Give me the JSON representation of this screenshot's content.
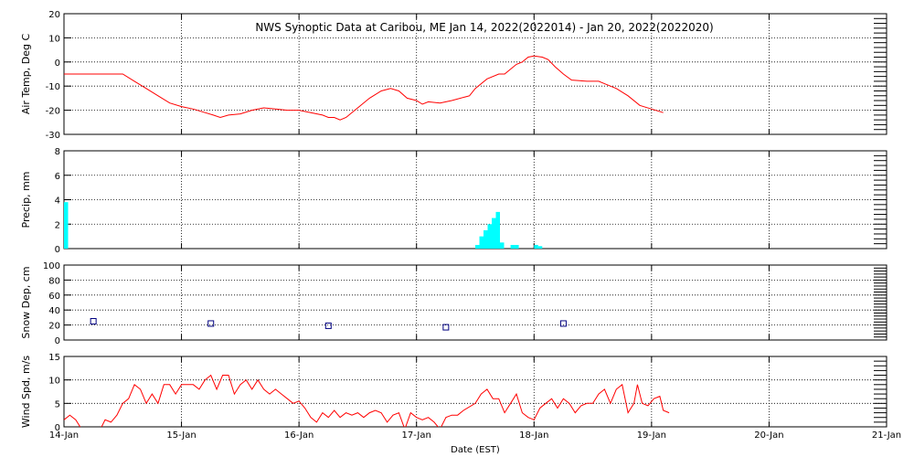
{
  "chart_data": {
    "type": "line",
    "title": "NWS Synoptic Data at Caribou, ME   Jan 14, 2022(2022014) - Jan 20, 2022(2022020)",
    "xlabel": "Date (EST)",
    "x_range_days": [
      0,
      7
    ],
    "x_tick_labels": [
      "14-Jan",
      "15-Jan",
      "16-Jan",
      "17-Jan",
      "18-Jan",
      "19-Jan",
      "20-Jan",
      "21-Jan"
    ],
    "grid": true,
    "colors": {
      "line": "#ff0000",
      "precip": "#00ffff",
      "snow": "#000080",
      "frame": "#000000"
    },
    "panels": [
      {
        "key": "temp",
        "ylabel": "Air Temp, Deg C",
        "ylim": [
          -30,
          20
        ],
        "yticks": [
          -30,
          -20,
          -10,
          0,
          10,
          20
        ],
        "series": [
          {
            "type": "line",
            "points": [
              [
                0,
                -5
              ],
              [
                0.4,
                -5
              ],
              [
                0.5,
                -5
              ],
              [
                0.6,
                -8
              ],
              [
                0.7,
                -11
              ],
              [
                0.8,
                -14
              ],
              [
                0.9,
                -17
              ],
              [
                1.0,
                -18.5
              ],
              [
                1.1,
                -19.5
              ],
              [
                1.2,
                -21
              ],
              [
                1.27,
                -22
              ],
              [
                1.33,
                -23
              ],
              [
                1.4,
                -22
              ],
              [
                1.5,
                -21.5
              ],
              [
                1.6,
                -20
              ],
              [
                1.7,
                -19
              ],
              [
                1.8,
                -19.5
              ],
              [
                1.9,
                -20
              ],
              [
                2.0,
                -20
              ],
              [
                2.1,
                -21
              ],
              [
                2.2,
                -22
              ],
              [
                2.25,
                -23
              ],
              [
                2.3,
                -23
              ],
              [
                2.35,
                -24
              ],
              [
                2.4,
                -23
              ],
              [
                2.5,
                -19
              ],
              [
                2.6,
                -15
              ],
              [
                2.7,
                -12
              ],
              [
                2.78,
                -11
              ],
              [
                2.85,
                -12
              ],
              [
                2.92,
                -15
              ],
              [
                3.0,
                -16
              ],
              [
                3.05,
                -17.5
              ],
              [
                3.1,
                -16.5
              ],
              [
                3.2,
                -17
              ],
              [
                3.3,
                -16
              ],
              [
                3.45,
                -14
              ],
              [
                3.5,
                -11
              ],
              [
                3.6,
                -7
              ],
              [
                3.7,
                -5
              ],
              [
                3.75,
                -5
              ],
              [
                3.85,
                -1
              ],
              [
                3.9,
                0
              ],
              [
                3.95,
                2
              ],
              [
                4.0,
                2.5
              ],
              [
                4.07,
                2
              ],
              [
                4.12,
                1
              ],
              [
                4.18,
                -2
              ],
              [
                4.25,
                -5
              ],
              [
                4.32,
                -7.5
              ],
              [
                4.45,
                -8
              ],
              [
                4.55,
                -8
              ],
              [
                4.6,
                -9
              ],
              [
                4.7,
                -11
              ],
              [
                4.8,
                -14
              ],
              [
                4.9,
                -18
              ],
              [
                5.0,
                -19.5
              ],
              [
                5.1,
                -21
              ]
            ]
          }
        ]
      },
      {
        "key": "precip",
        "ylabel": "Precip, mm",
        "ylim": [
          0,
          8
        ],
        "yticks": [
          0,
          2,
          4,
          6,
          8
        ],
        "series": [
          {
            "type": "bar",
            "bin_width": 0.035,
            "bars": [
              [
                0,
                3.8
              ],
              [
                3.5,
                0.3
              ],
              [
                3.535,
                1.0
              ],
              [
                3.57,
                1.5
              ],
              [
                3.605,
                2.0
              ],
              [
                3.64,
                2.5
              ],
              [
                3.675,
                3.0
              ],
              [
                3.71,
                0.5
              ],
              [
                3.8,
                0.3
              ],
              [
                3.835,
                0.3
              ],
              [
                4.0,
                0.3
              ],
              [
                4.035,
                0.2
              ]
            ]
          }
        ]
      },
      {
        "key": "snow",
        "ylabel": "Snow Dep, cm",
        "ylim": [
          0,
          100
        ],
        "yticks": [
          0,
          20,
          40,
          60,
          80,
          100
        ],
        "series": [
          {
            "type": "scatter",
            "points": [
              [
                0.25,
                25
              ],
              [
                1.25,
                22
              ],
              [
                2.25,
                19
              ],
              [
                3.25,
                17
              ],
              [
                4.25,
                22
              ]
            ]
          }
        ]
      },
      {
        "key": "wind",
        "ylabel": "Wind Spd, m/s",
        "ylim": [
          0,
          15
        ],
        "yticks": [
          0,
          5,
          10,
          15
        ],
        "series": [
          {
            "type": "line",
            "points": [
              [
                0,
                1.5
              ],
              [
                0.05,
                2.5
              ],
              [
                0.1,
                1.5
              ],
              [
                0.15,
                -0.5
              ],
              [
                0.25,
                -1
              ],
              [
                0.3,
                -1
              ],
              [
                0.35,
                1.5
              ],
              [
                0.4,
                1
              ],
              [
                0.45,
                2.5
              ],
              [
                0.5,
                5
              ],
              [
                0.55,
                6
              ],
              [
                0.6,
                9
              ],
              [
                0.65,
                8
              ],
              [
                0.7,
                5
              ],
              [
                0.75,
                7
              ],
              [
                0.8,
                5
              ],
              [
                0.85,
                9
              ],
              [
                0.9,
                9
              ],
              [
                0.95,
                7
              ],
              [
                1.0,
                9
              ],
              [
                1.05,
                9
              ],
              [
                1.1,
                9
              ],
              [
                1.15,
                8
              ],
              [
                1.2,
                10
              ],
              [
                1.25,
                11
              ],
              [
                1.3,
                8
              ],
              [
                1.35,
                11
              ],
              [
                1.4,
                11
              ],
              [
                1.45,
                7
              ],
              [
                1.5,
                9
              ],
              [
                1.55,
                10
              ],
              [
                1.6,
                8
              ],
              [
                1.65,
                10
              ],
              [
                1.7,
                8
              ],
              [
                1.75,
                7
              ],
              [
                1.8,
                8
              ],
              [
                1.85,
                7
              ],
              [
                1.9,
                6
              ],
              [
                1.95,
                5
              ],
              [
                2.0,
                5.5
              ],
              [
                2.05,
                4
              ],
              [
                2.1,
                2
              ],
              [
                2.15,
                1
              ],
              [
                2.2,
                3
              ],
              [
                2.25,
                2
              ],
              [
                2.3,
                3.5
              ],
              [
                2.35,
                2
              ],
              [
                2.4,
                3
              ],
              [
                2.45,
                2.5
              ],
              [
                2.5,
                3
              ],
              [
                2.55,
                2
              ],
              [
                2.6,
                3
              ],
              [
                2.65,
                3.5
              ],
              [
                2.7,
                3
              ],
              [
                2.75,
                1
              ],
              [
                2.8,
                2.5
              ],
              [
                2.85,
                3
              ],
              [
                2.9,
                -0.5
              ],
              [
                2.95,
                3
              ],
              [
                3.0,
                2
              ],
              [
                3.05,
                1.5
              ],
              [
                3.1,
                2
              ],
              [
                3.15,
                1
              ],
              [
                3.2,
                -0.5
              ],
              [
                3.25,
                2
              ],
              [
                3.3,
                2.5
              ],
              [
                3.35,
                2.5
              ],
              [
                3.4,
                3.5
              ],
              [
                3.5,
                5
              ],
              [
                3.55,
                7
              ],
              [
                3.6,
                8
              ],
              [
                3.65,
                6
              ],
              [
                3.7,
                6
              ],
              [
                3.75,
                3
              ],
              [
                3.8,
                5
              ],
              [
                3.85,
                7
              ],
              [
                3.9,
                3
              ],
              [
                3.95,
                2
              ],
              [
                4.0,
                1.5
              ],
              [
                4.05,
                4
              ],
              [
                4.1,
                5
              ],
              [
                4.15,
                6
              ],
              [
                4.2,
                4
              ],
              [
                4.25,
                6
              ],
              [
                4.3,
                5
              ],
              [
                4.35,
                3
              ],
              [
                4.4,
                4.5
              ],
              [
                4.45,
                5
              ],
              [
                4.5,
                5
              ],
              [
                4.55,
                7
              ],
              [
                4.6,
                8
              ],
              [
                4.65,
                5
              ],
              [
                4.7,
                8
              ],
              [
                4.75,
                9
              ],
              [
                4.8,
                3
              ],
              [
                4.85,
                5
              ],
              [
                4.88,
                9
              ],
              [
                4.92,
                5
              ],
              [
                4.97,
                4.5
              ],
              [
                5.02,
                6
              ],
              [
                5.07,
                6.5
              ],
              [
                5.1,
                3.5
              ],
              [
                5.15,
                3
              ]
            ]
          }
        ]
      }
    ]
  }
}
